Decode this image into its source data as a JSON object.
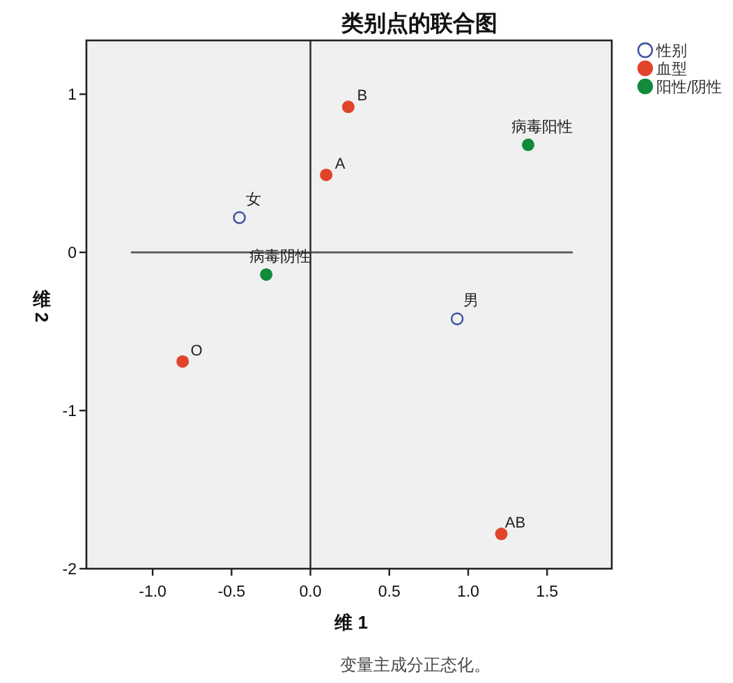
{
  "chart_data": {
    "type": "scatter",
    "title": "类别点的联合图",
    "xlabel": "维 1",
    "ylabel": "维 2",
    "xlim": [
      -1.42,
      1.91
    ],
    "ylim": [
      -2,
      1.34
    ],
    "xticks": [
      {
        "value": -1,
        "label": "-1.0"
      },
      {
        "value": -0.5,
        "label": "-0.5"
      },
      {
        "value": 0,
        "label": "0.0"
      },
      {
        "value": 0.5,
        "label": "0.5"
      },
      {
        "value": 1,
        "label": "1.0"
      },
      {
        "value": 1.5,
        "label": "1.5"
      }
    ],
    "yticks": [
      -2,
      -1,
      0,
      1
    ],
    "marker": "circle",
    "legend": "top right",
    "ref_lines": [
      {
        "axis": "y",
        "value": 0,
        "color": "#555555"
      },
      {
        "axis": "x",
        "value": 0,
        "color": "#333333"
      }
    ],
    "series": [
      {
        "name": "性别",
        "color": "#3c4f9e",
        "x": [
          -0.45,
          0.93
        ],
        "values": [
          0.22,
          -0.42
        ]
      },
      {
        "name": "血型",
        "color": "#e0452c",
        "x": [
          0.1,
          0.24,
          -0.81,
          1.21
        ],
        "values": [
          0.49,
          0.92,
          -0.69,
          -1.78
        ]
      },
      {
        "name": "阳性/阴性",
        "color": "#128a3c",
        "x": [
          1.38,
          -0.28
        ],
        "values": [
          0.68,
          -0.14
        ]
      }
    ],
    "annotations": [
      {
        "text": "女",
        "x": -0.45,
        "y": 0.22
      },
      {
        "text": "男",
        "x": 0.93,
        "y": -0.42
      },
      {
        "text": "A",
        "x": 0.1,
        "y": 0.49
      },
      {
        "text": "B",
        "x": 0.24,
        "y": 0.92
      },
      {
        "text": "O",
        "x": -0.81,
        "y": -0.69
      },
      {
        "text": "AB",
        "x": 1.21,
        "y": -1.78
      },
      {
        "text": "病毒阳性",
        "x": 1.38,
        "y": 0.68
      },
      {
        "text": "病毒阴性",
        "x": -0.28,
        "y": -0.14
      },
      "变量主成分正态化。"
    ]
  }
}
